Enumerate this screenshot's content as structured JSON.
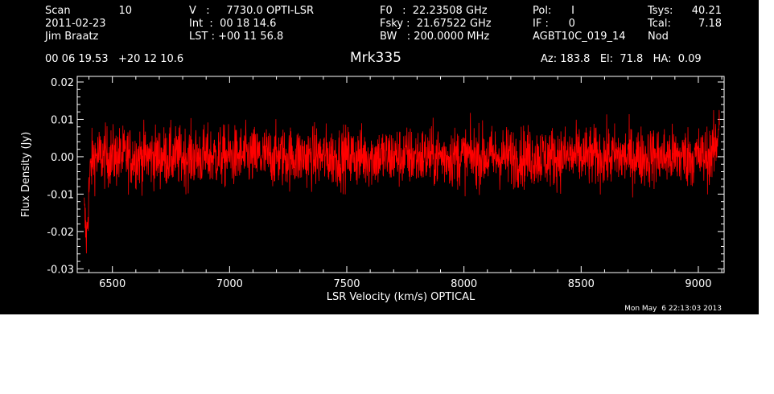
{
  "header": {
    "col1": [
      {
        "label": "Scan",
        "value": "10"
      },
      {
        "text": "2011-02-23"
      },
      {
        "text": "Jim Braatz"
      }
    ],
    "col2": [
      "V   :     7730.0 OPTI-LSR",
      "Int  :  00 18 14.6",
      "LST : +00 11 56.8"
    ],
    "col3": [
      "F0   :  22.23508 GHz",
      "Fsky :  21.67522 GHz",
      "BW   : 200.0000 MHz"
    ],
    "col4": [
      "Pol:      I",
      "IF :      0",
      "AGBT10C_019_14"
    ],
    "col5": [
      {
        "label": "Tsys:",
        "value": "40.21"
      },
      {
        "label": "Tcal:",
        "value": "7.18"
      },
      {
        "label": "Nod",
        "value": ""
      }
    ],
    "coords": "00 06 19.53   +20 12 10.6",
    "telescope": "Az: 183.8   El:  71.8   HA:  0.09"
  },
  "title": "Mrk335",
  "timestamp": "Mon May  6 22:13:03 2013",
  "chart_data": {
    "type": "line",
    "xlabel": "LSR Velocity (km/s) OPTICAL",
    "ylabel": "Flux Density (Jy)",
    "xlim": [
      6350,
      9110
    ],
    "ylim": [
      -0.031,
      0.0215
    ],
    "xticks": [
      6500,
      7000,
      7500,
      8000,
      8500,
      9000
    ],
    "yticks": [
      -0.03,
      -0.02,
      -0.01,
      0.0,
      0.01,
      0.02
    ],
    "ytick_labels": [
      "-0.03",
      "-0.02",
      "-0.01",
      "0.00",
      "0.01",
      "0.02"
    ],
    "series": [
      {
        "color": "#ff0000",
        "x": [
          6380,
          6385,
          6390,
          6395,
          6400,
          6405,
          6410,
          6420,
          6440,
          6470,
          6500,
          6600,
          6700,
          6800,
          6900,
          7000,
          7100,
          7200,
          7300,
          7400,
          7500,
          7600,
          7700,
          7800,
          7900,
          8000,
          8100,
          8200,
          8300,
          8400,
          8500,
          8600,
          8700,
          8800,
          8900,
          9000,
          9040,
          9060,
          9070,
          9080,
          9085,
          9090
        ],
        "y": [
          -0.015,
          -0.019,
          -0.022,
          -0.016,
          -0.009,
          -0.005,
          -0.002,
          0.0,
          0.0,
          0.0,
          0.0,
          0.0,
          0.0,
          0.0,
          0.0,
          0.0,
          0.0,
          0.0,
          0.0,
          0.0,
          0.0,
          0.0,
          0.0,
          0.0,
          0.0,
          0.0,
          0.0,
          0.0,
          0.0,
          0.0,
          0.0,
          0.0,
          0.0,
          0.0,
          0.0,
          0.0,
          0.0,
          0.001,
          0.002,
          0.004,
          0.008,
          0.012
        ],
        "rms": 0.004
      }
    ]
  },
  "colors": {
    "background": "#000000",
    "axes": "#ffffff",
    "trace": "#ff0000"
  }
}
